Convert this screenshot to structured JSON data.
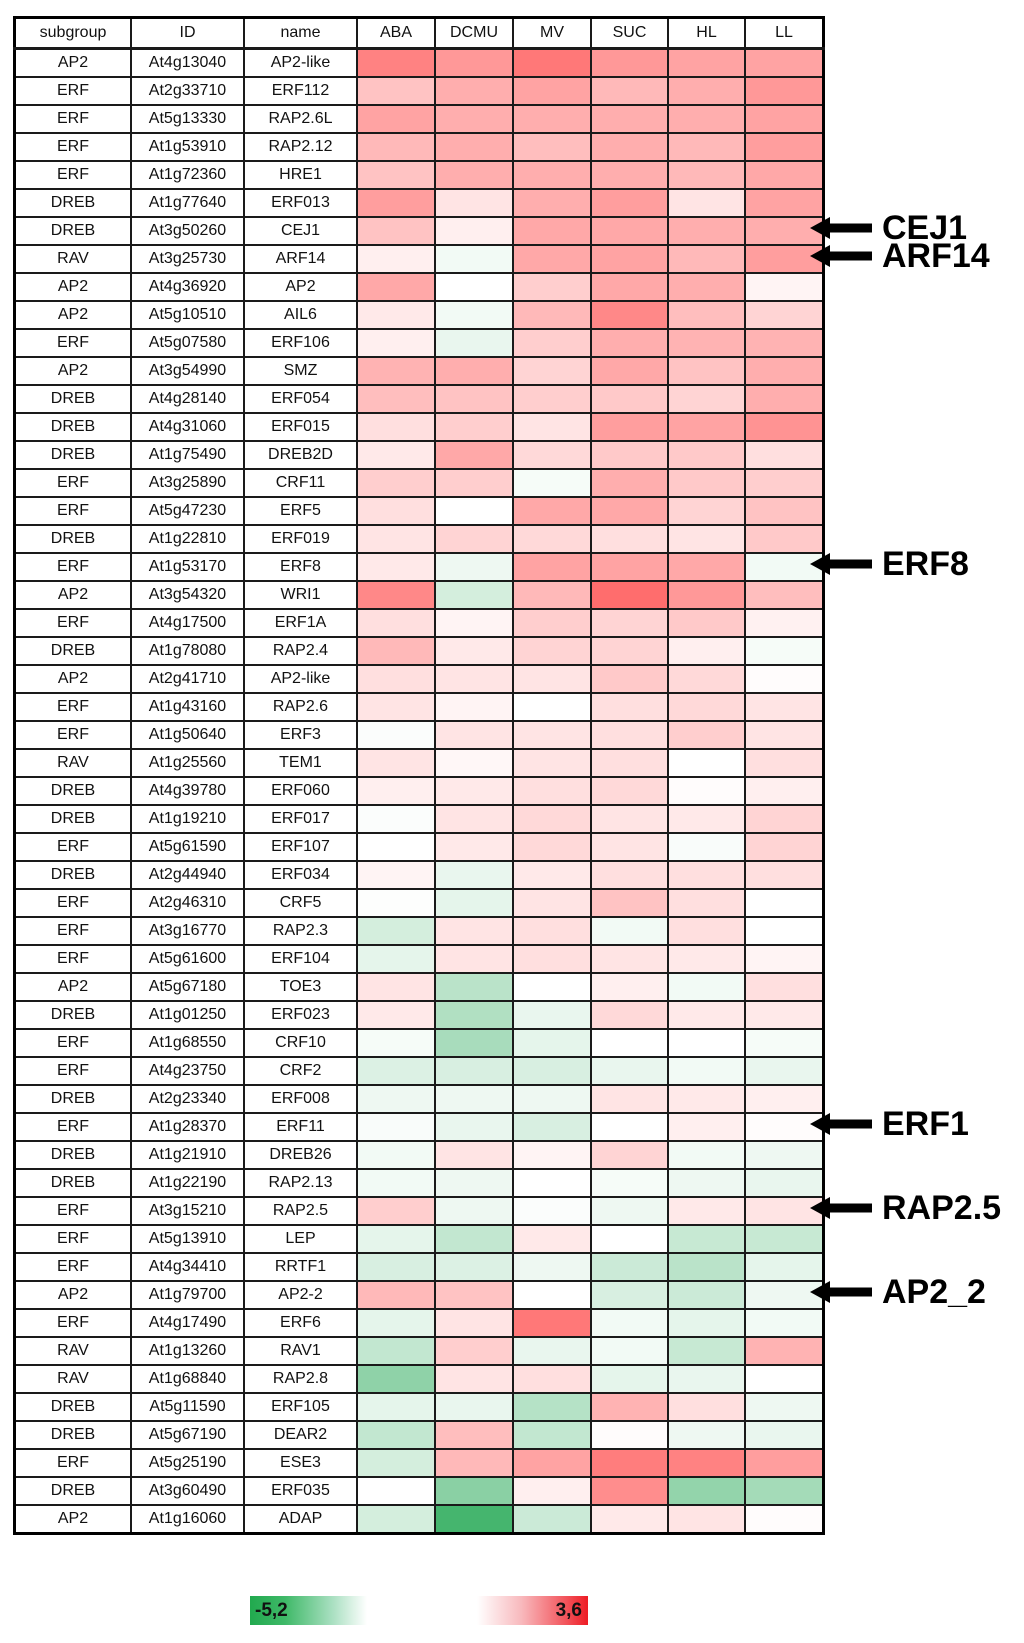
{
  "chart_data": {
    "type": "heatmap",
    "text_columns": [
      "subgroup",
      "ID",
      "name"
    ],
    "columns": [
      "ABA",
      "DCMU",
      "MV",
      "SUC",
      "HL",
      "LL"
    ],
    "colorscale": {
      "min": -5.2,
      "max": 3.6,
      "min_label": "-5,2",
      "max_label": "3,6",
      "negative_color": "#1EA550",
      "midpoint_color": "#FFFFFF",
      "positive_color": "#EE1C25"
    },
    "rows": [
      {
        "subgroup": "AP2",
        "id": "At4g13040",
        "name": "AP2-like",
        "values": [
          2.3,
          1.9,
          2.5,
          1.9,
          1.7,
          1.7
        ]
      },
      {
        "subgroup": "ERF",
        "id": "At2g33710",
        "name": "ERF112",
        "values": [
          1.1,
          1.5,
          1.7,
          1.3,
          1.5,
          1.9
        ]
      },
      {
        "subgroup": "ERF",
        "id": "At5g13330",
        "name": "RAP2.6L",
        "values": [
          1.7,
          1.5,
          1.5,
          1.5,
          1.5,
          1.7
        ]
      },
      {
        "subgroup": "ERF",
        "id": "At1g53910",
        "name": "RAP2.12",
        "values": [
          1.3,
          1.5,
          1.2,
          1.5,
          1.3,
          1.8
        ]
      },
      {
        "subgroup": "ERF",
        "id": "At1g72360",
        "name": "HRE1",
        "values": [
          1.1,
          1.5,
          1.5,
          1.5,
          1.3,
          1.6
        ]
      },
      {
        "subgroup": "DREB",
        "id": "At1g77640",
        "name": "ERF013",
        "values": [
          1.8,
          0.5,
          1.5,
          1.8,
          0.5,
          1.7
        ]
      },
      {
        "subgroup": "DREB",
        "id": "At3g50260",
        "name": "CEJ1",
        "values": [
          1.1,
          0.3,
          1.6,
          1.6,
          1.5,
          1.5
        ]
      },
      {
        "subgroup": "RAV",
        "id": "At3g25730",
        "name": "ARF14",
        "values": [
          0.3,
          -0.3,
          1.6,
          1.7,
          1.3,
          1.8
        ]
      },
      {
        "subgroup": "AP2",
        "id": "At4g36920",
        "name": "AP2",
        "values": [
          1.6,
          0.0,
          0.9,
          1.6,
          1.5,
          0.2
        ]
      },
      {
        "subgroup": "AP2",
        "id": "At5g10510",
        "name": "AIL6",
        "values": [
          0.4,
          -0.3,
          1.3,
          2.2,
          1.2,
          0.8
        ]
      },
      {
        "subgroup": "ERF",
        "id": "At5g07580",
        "name": "ERF106",
        "values": [
          0.3,
          -0.5,
          0.9,
          1.5,
          1.4,
          1.4
        ]
      },
      {
        "subgroup": "AP2",
        "id": "At3g54990",
        "name": "SMZ",
        "values": [
          1.4,
          1.5,
          0.8,
          1.6,
          1.1,
          1.5
        ]
      },
      {
        "subgroup": "DREB",
        "id": "At4g28140",
        "name": "ERF054",
        "values": [
          1.2,
          1.1,
          0.9,
          1.0,
          0.8,
          1.5
        ]
      },
      {
        "subgroup": "DREB",
        "id": "At4g31060",
        "name": "ERF015",
        "values": [
          0.6,
          0.9,
          0.5,
          1.8,
          1.7,
          2.0
        ]
      },
      {
        "subgroup": "DREB",
        "id": "At1g75490",
        "name": "DREB2D",
        "values": [
          0.4,
          1.6,
          0.7,
          1.0,
          1.0,
          0.6
        ]
      },
      {
        "subgroup": "ERF",
        "id": "At3g25890",
        "name": "CRF11",
        "values": [
          0.9,
          0.9,
          -0.2,
          1.5,
          1.0,
          0.9
        ]
      },
      {
        "subgroup": "ERF",
        "id": "At5g47230",
        "name": "ERF5",
        "values": [
          0.6,
          0.0,
          1.6,
          1.6,
          0.8,
          1.1
        ]
      },
      {
        "subgroup": "DREB",
        "id": "At1g22810",
        "name": "ERF019",
        "values": [
          0.5,
          0.8,
          0.7,
          0.6,
          0.5,
          1.0
        ]
      },
      {
        "subgroup": "ERF",
        "id": "At1g53170",
        "name": "ERF8",
        "values": [
          0.4,
          -0.4,
          1.7,
          1.7,
          1.6,
          -0.3
        ]
      },
      {
        "subgroup": "AP2",
        "id": "At3g54320",
        "name": "WRI1",
        "values": [
          2.2,
          -1.0,
          1.3,
          2.7,
          1.9,
          1.2
        ]
      },
      {
        "subgroup": "ERF",
        "id": "At4g17500",
        "name": "ERF1A",
        "values": [
          0.6,
          0.2,
          0.9,
          0.8,
          1.0,
          0.25
        ]
      },
      {
        "subgroup": "DREB",
        "id": "At1g78080",
        "name": "RAP2.4",
        "values": [
          1.3,
          0.4,
          0.8,
          0.8,
          0.3,
          -0.2
        ]
      },
      {
        "subgroup": "AP2",
        "id": "At2g41710",
        "name": "AP2-like",
        "values": [
          0.6,
          0.5,
          0.5,
          1.0,
          0.7,
          0.05
        ]
      },
      {
        "subgroup": "ERF",
        "id": "At1g43160",
        "name": "RAP2.6",
        "values": [
          0.5,
          0.2,
          0.0,
          0.6,
          0.7,
          0.5
        ]
      },
      {
        "subgroup": "ERF",
        "id": "At1g50640",
        "name": "ERF3",
        "values": [
          -0.1,
          0.5,
          0.5,
          0.6,
          0.9,
          0.5
        ]
      },
      {
        "subgroup": "RAV",
        "id": "At1g25560",
        "name": "TEM1",
        "values": [
          0.5,
          0.15,
          0.5,
          0.6,
          0.0,
          0.6
        ]
      },
      {
        "subgroup": "DREB",
        "id": "At4g39780",
        "name": "ERF060",
        "values": [
          0.3,
          0.4,
          0.6,
          0.7,
          0.05,
          0.3
        ]
      },
      {
        "subgroup": "DREB",
        "id": "At1g19210",
        "name": "ERF017",
        "values": [
          -0.1,
          0.5,
          0.7,
          0.5,
          0.4,
          0.8
        ]
      },
      {
        "subgroup": "ERF",
        "id": "At5g61590",
        "name": "ERF107",
        "values": [
          0.0,
          0.4,
          0.7,
          0.5,
          -0.15,
          0.8
        ]
      },
      {
        "subgroup": "DREB",
        "id": "At2g44940",
        "name": "ERF034",
        "values": [
          0.2,
          -0.5,
          0.4,
          0.6,
          0.6,
          0.6
        ]
      },
      {
        "subgroup": "ERF",
        "id": "At2g46310",
        "name": "CRF5",
        "values": [
          -0.05,
          -0.6,
          0.5,
          1.1,
          0.6,
          0.0
        ]
      },
      {
        "subgroup": "ERF",
        "id": "At3g16770",
        "name": "RAP2.3",
        "values": [
          -1.0,
          0.5,
          0.6,
          -0.3,
          0.6,
          0.0
        ]
      },
      {
        "subgroup": "ERF",
        "id": "At5g61600",
        "name": "ERF104",
        "values": [
          -0.6,
          0.5,
          0.6,
          0.5,
          0.4,
          0.2
        ]
      },
      {
        "subgroup": "AP2",
        "id": "At5g67180",
        "name": "TOE3",
        "values": [
          0.5,
          -1.6,
          0.0,
          0.3,
          -0.3,
          0.6
        ]
      },
      {
        "subgroup": "DREB",
        "id": "At1g01250",
        "name": "ERF023",
        "values": [
          0.4,
          -1.8,
          -0.5,
          0.7,
          0.4,
          0.4
        ]
      },
      {
        "subgroup": "ERF",
        "id": "At1g68550",
        "name": "CRF10",
        "values": [
          -0.2,
          -2.0,
          -0.6,
          0.0,
          0.0,
          -0.2
        ]
      },
      {
        "subgroup": "ERF",
        "id": "At4g23750",
        "name": "CRF2",
        "values": [
          -0.8,
          -0.9,
          -0.9,
          -0.5,
          -0.3,
          -0.5
        ]
      },
      {
        "subgroup": "DREB",
        "id": "At2g23340",
        "name": "ERF008",
        "values": [
          -0.4,
          -0.4,
          -0.4,
          0.5,
          0.4,
          0.3
        ]
      },
      {
        "subgroup": "ERF",
        "id": "At1g28370",
        "name": "ERF11",
        "values": [
          -0.15,
          -0.5,
          -0.9,
          0.0,
          0.3,
          0.05
        ]
      },
      {
        "subgroup": "DREB",
        "id": "At1g21910",
        "name": "DREB26",
        "values": [
          -0.3,
          0.5,
          0.2,
          0.8,
          -0.3,
          -0.4
        ]
      },
      {
        "subgroup": "DREB",
        "id": "At1g22190",
        "name": "RAP2.13",
        "values": [
          -0.3,
          -0.4,
          0.0,
          -0.2,
          -0.4,
          -0.5
        ]
      },
      {
        "subgroup": "ERF",
        "id": "At3g15210",
        "name": "RAP2.5",
        "values": [
          0.9,
          -0.4,
          -0.1,
          -0.4,
          0.4,
          0.5
        ]
      },
      {
        "subgroup": "ERF",
        "id": "At5g13910",
        "name": "LEP",
        "values": [
          -0.6,
          -1.4,
          0.4,
          0.0,
          -1.3,
          -1.3
        ]
      },
      {
        "subgroup": "ERF",
        "id": "At4g34410",
        "name": "RRTF1",
        "values": [
          -0.9,
          -0.8,
          -0.4,
          -1.2,
          -1.6,
          -0.6
        ]
      },
      {
        "subgroup": "AP2",
        "id": "At1g79700",
        "name": "AP2-2",
        "values": [
          1.3,
          1.1,
          0.0,
          -0.9,
          -1.2,
          -0.4
        ]
      },
      {
        "subgroup": "ERF",
        "id": "At4g17490",
        "name": "ERF6",
        "values": [
          -0.6,
          0.5,
          2.5,
          -0.3,
          -0.6,
          -0.3
        ]
      },
      {
        "subgroup": "RAV",
        "id": "At1g13260",
        "name": "RAV1",
        "values": [
          -1.4,
          0.9,
          -0.5,
          -0.3,
          -1.3,
          1.4
        ]
      },
      {
        "subgroup": "RAV",
        "id": "At1g68840",
        "name": "RAP2.8",
        "values": [
          -2.6,
          0.5,
          0.6,
          -0.6,
          -0.5,
          0.0
        ]
      },
      {
        "subgroup": "DREB",
        "id": "At5g11590",
        "name": "ERF105",
        "values": [
          -0.6,
          -0.5,
          -1.7,
          1.4,
          0.6,
          -0.4
        ]
      },
      {
        "subgroup": "DREB",
        "id": "At5g67190",
        "name": "DEAR2",
        "values": [
          -1.4,
          1.2,
          -1.4,
          0.05,
          -0.4,
          -0.5
        ]
      },
      {
        "subgroup": "ERF",
        "id": "At5g25190",
        "name": "ESE3",
        "values": [
          -1.0,
          1.3,
          1.7,
          2.4,
          2.3,
          1.8
        ]
      },
      {
        "subgroup": "DREB",
        "id": "At3g60490",
        "name": "ERF035",
        "values": [
          0.0,
          -2.7,
          0.3,
          2.1,
          -2.5,
          -2.1
        ]
      },
      {
        "subgroup": "AP2",
        "id": "At1g16060",
        "name": "ADAP",
        "values": [
          -1.0,
          -4.3,
          -1.2,
          0.4,
          0.5,
          0.05
        ]
      }
    ],
    "annotations": [
      {
        "label": "CEJ1",
        "row_index": 6
      },
      {
        "label": "ARF14",
        "row_index": 7
      },
      {
        "label": "ERF8",
        "row_index": 18
      },
      {
        "label": "ERF1",
        "row_index": 38
      },
      {
        "label": "RAP2.5",
        "row_index": 41
      },
      {
        "label": "AP2_2",
        "row_index": 44
      }
    ],
    "legend": {
      "min_label": "-5,2",
      "max_label": "3,6"
    },
    "title": "",
    "xlabel": "",
    "ylabel": ""
  }
}
